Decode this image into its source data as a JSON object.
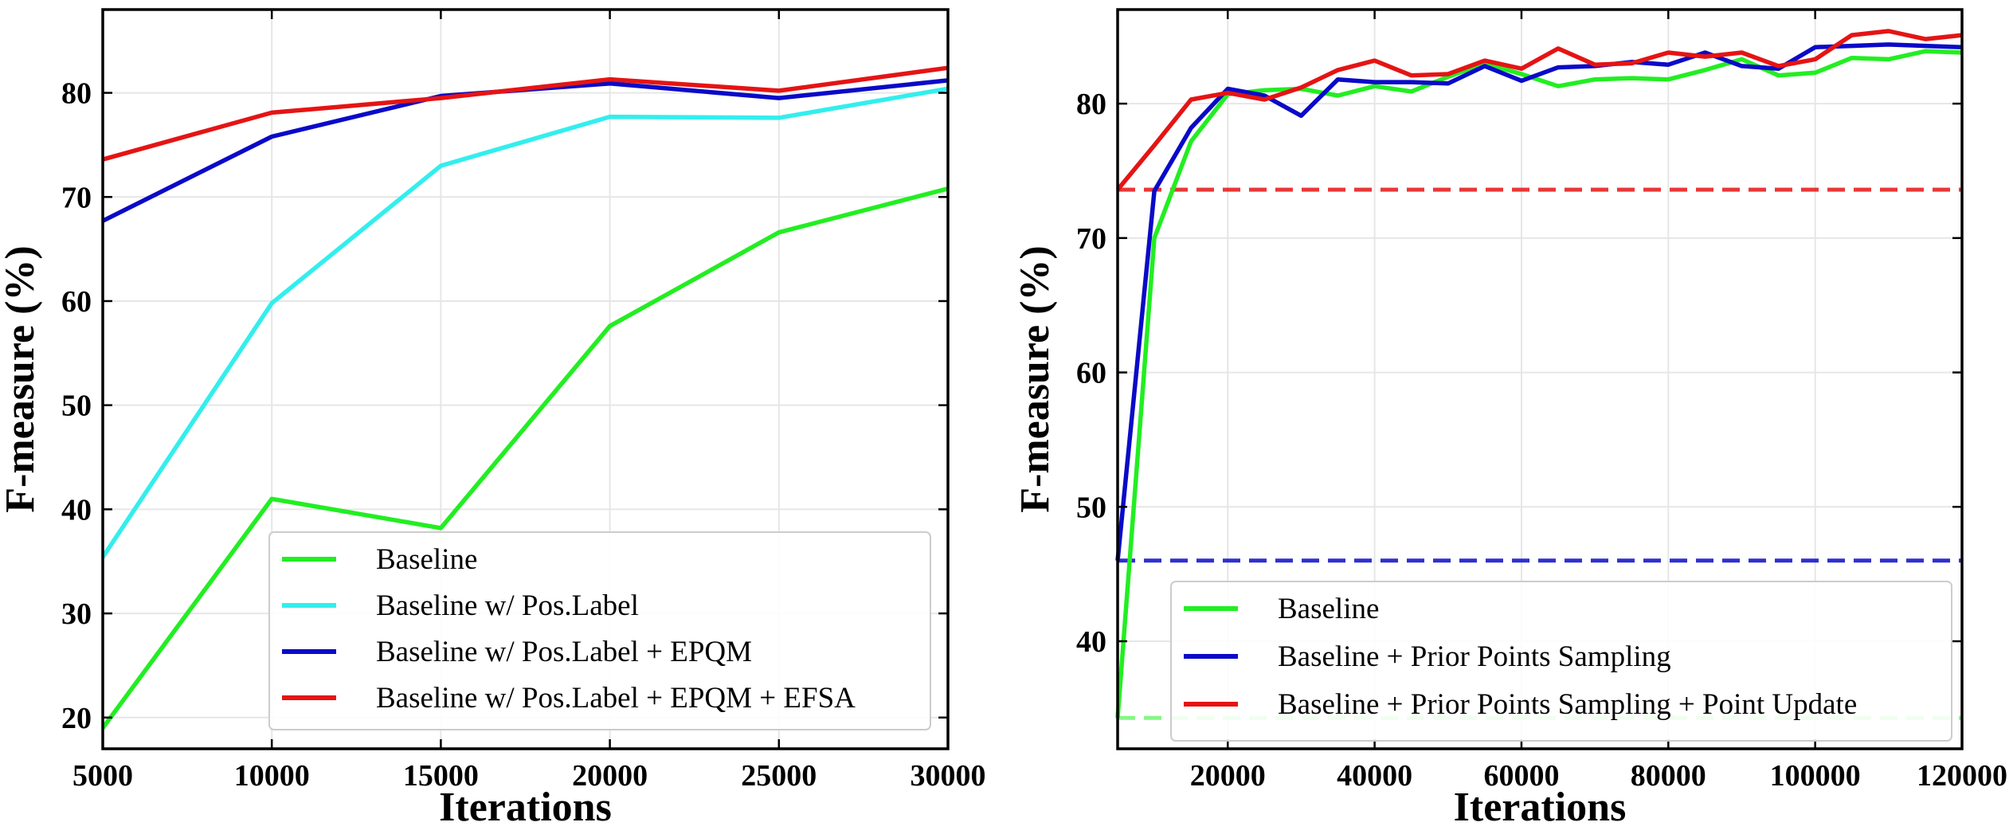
{
  "chart_data": [
    {
      "type": "line",
      "xlabel": "Iterations",
      "ylabel": "F-measure (%)",
      "xlim": [
        5000,
        30000
      ],
      "ylim": [
        17,
        88
      ],
      "xticks": [
        "5000",
        "10000",
        "15000",
        "20000",
        "25000",
        "30000"
      ],
      "yticks": [
        "20",
        "30",
        "40",
        "50",
        "60",
        "70",
        "80"
      ],
      "grid": true,
      "legend_position": "bottom-right",
      "x": [
        5000,
        10000,
        15000,
        20000,
        25000,
        30000
      ],
      "series": [
        {
          "name": "Baseline",
          "color": "#22ee22",
          "values": [
            19.0,
            41.0,
            38.2,
            57.6,
            66.6,
            70.8
          ]
        },
        {
          "name": "Baseline w/ Pos.Label",
          "color": "#33eeee",
          "values": [
            35.4,
            59.8,
            73.0,
            77.7,
            77.6,
            80.4
          ]
        },
        {
          "name": "Baseline w/ Pos.Label + EPQM",
          "color": "#0a0ac8",
          "values": [
            67.7,
            75.8,
            79.7,
            80.9,
            79.5,
            81.2
          ]
        },
        {
          "name": "Baseline w/ Pos.Label + EPQM + EFSA",
          "color": "#e51414",
          "values": [
            73.6,
            78.1,
            79.5,
            81.3,
            80.2,
            82.4
          ]
        }
      ]
    },
    {
      "type": "line",
      "xlabel": "Iterations",
      "ylabel": "F-measure (%)",
      "xlim": [
        5000,
        120000
      ],
      "ylim": [
        32,
        87
      ],
      "xticks": [
        "20000",
        "40000",
        "60000",
        "80000",
        "100000",
        "120000"
      ],
      "yticks": [
        "40",
        "50",
        "60",
        "70",
        "80"
      ],
      "grid": true,
      "legend_position": "bottom-right",
      "x": [
        5000,
        10000,
        15000,
        20000,
        25000,
        30000,
        35000,
        40000,
        45000,
        50000,
        55000,
        60000,
        65000,
        70000,
        75000,
        80000,
        85000,
        90000,
        95000,
        100000,
        105000,
        110000,
        115000,
        120000
      ],
      "series": [
        {
          "name": "Baseline",
          "color": "#22ee22",
          "values": [
            34.3,
            70.0,
            77.2,
            80.7,
            81.0,
            81.1,
            80.6,
            81.3,
            80.9,
            82.0,
            83.0,
            82.2,
            81.3,
            81.8,
            81.9,
            81.8,
            82.5,
            83.3,
            82.1,
            82.3,
            83.4,
            83.3,
            83.9,
            83.8
          ],
          "baseline_value": 34.3
        },
        {
          "name": "Baseline + Prior Points Sampling",
          "color": "#0a0ac8",
          "values": [
            46.0,
            73.5,
            78.2,
            81.1,
            80.6,
            79.1,
            81.8,
            81.6,
            81.6,
            81.5,
            82.8,
            81.7,
            82.7,
            82.8,
            83.1,
            82.9,
            83.8,
            82.8,
            82.6,
            84.2,
            84.3,
            84.4,
            84.3,
            84.2
          ],
          "baseline_value": 46.0
        },
        {
          "name": "Baseline + Prior Points Sampling + Point Update",
          "color": "#e51414",
          "values": [
            73.6,
            76.9,
            80.3,
            80.8,
            80.3,
            81.2,
            82.5,
            83.2,
            82.1,
            82.2,
            83.2,
            82.6,
            84.1,
            82.9,
            83.0,
            83.8,
            83.5,
            83.8,
            82.8,
            83.3,
            85.1,
            85.4,
            84.8,
            85.1
          ],
          "baseline_value": 73.6
        }
      ]
    }
  ]
}
